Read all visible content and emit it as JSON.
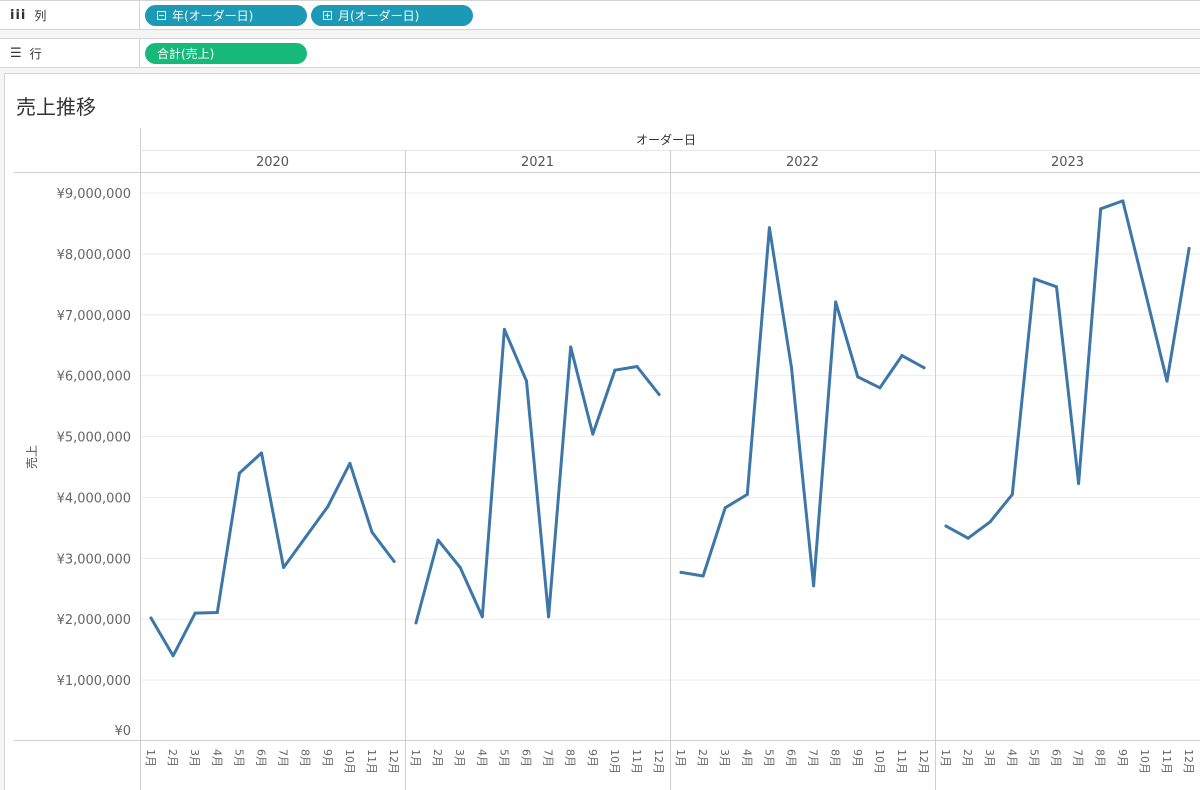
{
  "columns_shelf": {
    "icon": "columns-icon",
    "label": "列",
    "pills": [
      {
        "icon": "collapse-minus-icon",
        "label": "年(オーダー日)"
      },
      {
        "icon": "expand-plus-icon",
        "label": "月(オーダー日)"
      }
    ]
  },
  "rows_shelf": {
    "icon": "rows-list-icon",
    "label": "行",
    "pills": [
      {
        "label": "合計(売上)"
      }
    ]
  },
  "colors": {
    "pill_dimension": "#1b99b5",
    "pill_measure": "#17b978",
    "line": "#3d77a8"
  },
  "chart_title": "売上推移",
  "chart_data": {
    "type": "line",
    "column_header": "オーダー日",
    "ylabel": "売上",
    "ylim": [
      0,
      9300000
    ],
    "y_ticks": [
      0,
      1000000,
      2000000,
      3000000,
      4000000,
      5000000,
      6000000,
      7000000,
      8000000,
      9000000
    ],
    "y_tick_labels": [
      "¥0",
      "¥1,000,000",
      "¥2,000,000",
      "¥3,000,000",
      "¥4,000,000",
      "¥5,000,000",
      "¥6,000,000",
      "¥7,000,000",
      "¥8,000,000",
      "¥9,000,000"
    ],
    "months": [
      "1月",
      "2月",
      "3月",
      "4月",
      "5月",
      "6月",
      "7月",
      "8月",
      "9月",
      "10月",
      "11月",
      "12月"
    ],
    "panels": [
      {
        "year": "2020",
        "values": [
          2020000,
          1400000,
          2100000,
          2110000,
          4400000,
          4730000,
          2850000,
          3350000,
          3850000,
          4560000,
          3430000,
          2950000
        ]
      },
      {
        "year": "2021",
        "values": [
          1940000,
          3300000,
          2850000,
          2040000,
          6760000,
          5910000,
          2040000,
          6470000,
          5040000,
          6090000,
          6150000,
          5690000
        ]
      },
      {
        "year": "2022",
        "values": [
          2770000,
          2710000,
          3830000,
          4050000,
          8430000,
          6130000,
          2550000,
          7210000,
          5980000,
          5800000,
          6330000,
          6130000
        ]
      },
      {
        "year": "2023",
        "values": [
          3530000,
          3330000,
          3600000,
          4050000,
          7590000,
          7460000,
          4230000,
          8740000,
          8870000,
          7400000,
          5910000,
          8090000
        ]
      }
    ]
  }
}
